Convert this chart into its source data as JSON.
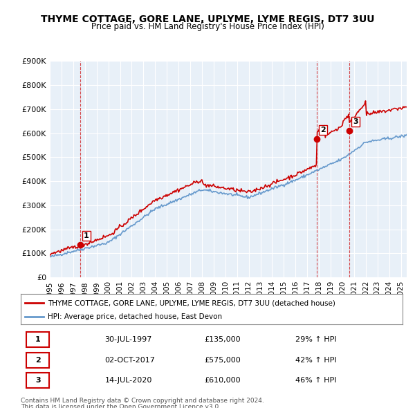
{
  "title": "THYME COTTAGE, GORE LANE, UPLYME, LYME REGIS, DT7 3UU",
  "subtitle": "Price paid vs. HM Land Registry's House Price Index (HPI)",
  "background_color": "#ffffff",
  "plot_bg_color": "#e8f0f8",
  "grid_color": "#ffffff",
  "ylabel_color": "#000000",
  "sale_dates": [
    "1997-07-30",
    "2017-10-02",
    "2020-07-14"
  ],
  "sale_prices": [
    135000,
    575000,
    610000
  ],
  "sale_labels": [
    "1",
    "2",
    "3"
  ],
  "legend_line1": "THYME COTTAGE, GORE LANE, UPLYME, LYME REGIS, DT7 3UU (detached house)",
  "legend_line2": "HPI: Average price, detached house, East Devon",
  "table_data": [
    [
      "1",
      "30-JUL-1997",
      "£135,000",
      "29% ↑ HPI"
    ],
    [
      "2",
      "02-OCT-2017",
      "£575,000",
      "42% ↑ HPI"
    ],
    [
      "3",
      "14-JUL-2020",
      "£610,000",
      "46% ↑ HPI"
    ]
  ],
  "footer1": "Contains HM Land Registry data © Crown copyright and database right 2024.",
  "footer2": "This data is licensed under the Open Government Licence v3.0.",
  "red_line_color": "#cc0000",
  "blue_line_color": "#6699cc",
  "ylim": [
    0,
    900000
  ],
  "yticks": [
    0,
    100000,
    200000,
    300000,
    400000,
    500000,
    600000,
    700000,
    800000,
    900000
  ],
  "ytick_labels": [
    "£0",
    "£100K",
    "£200K",
    "£300K",
    "£400K",
    "£500K",
    "£600K",
    "£700K",
    "£800K",
    "£900K"
  ],
  "xlim_start": 1995.0,
  "xlim_end": 2025.5
}
